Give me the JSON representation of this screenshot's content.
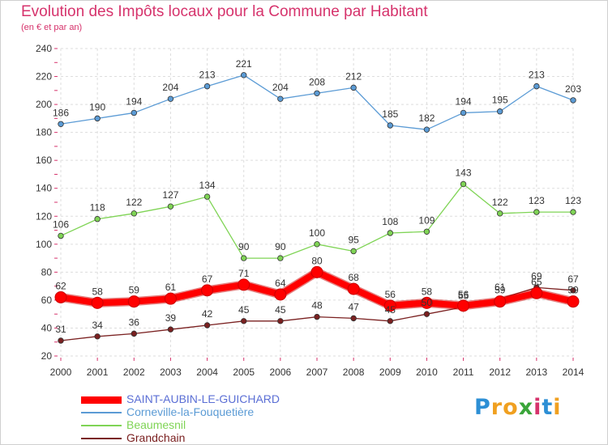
{
  "header": {
    "title": "Evolution des Impôts locaux pour la Commune par Habitant",
    "subtitle": "(en € et par an)"
  },
  "logo": {
    "letters": [
      "P",
      "r",
      "o",
      "x",
      "i",
      "t",
      "i"
    ],
    "colors": [
      "#2d8fd5",
      "#f0a020",
      "#f0a020",
      "#3aa53a",
      "#d6336c",
      "#2d8fd5",
      "#f0a020"
    ]
  },
  "chart_data": {
    "type": "line",
    "x": [
      "2000",
      "2001",
      "2002",
      "2003",
      "2004",
      "2005",
      "2006",
      "2007",
      "2008",
      "2009",
      "2010",
      "2011",
      "2012",
      "2013",
      "2014"
    ],
    "ylim": [
      20,
      240
    ],
    "yticks": [
      20,
      40,
      60,
      80,
      100,
      120,
      140,
      160,
      180,
      200,
      220,
      240
    ],
    "grid": true,
    "legend_position": "bottom-left",
    "series": [
      {
        "name": "SAINT-AUBIN-LE-GUICHARD",
        "color": "#ff0000",
        "values": [
          62,
          58,
          59,
          61,
          67,
          71,
          64,
          80,
          68,
          56,
          58,
          56,
          59,
          65,
          59
        ],
        "labels": [
          "62",
          "58",
          "59",
          "61",
          "67",
          "71",
          "64",
          "80",
          "68",
          "56",
          "58",
          "56",
          "59",
          "65",
          "59"
        ]
      },
      {
        "name": "Corneville-la-Fouquetière",
        "color": "#5b9bd5",
        "values": [
          186,
          190,
          194,
          204,
          213,
          221,
          204,
          208,
          212,
          185,
          182,
          194,
          195,
          213,
          203
        ],
        "labels": [
          "186",
          "190",
          "194",
          "204",
          "213",
          "221",
          "204",
          "208",
          "212",
          "185",
          "182",
          "194",
          "195",
          "213",
          "203"
        ]
      },
      {
        "name": "Beaumesnil",
        "color": "#7fd455",
        "values": [
          106,
          118,
          122,
          127,
          134,
          90,
          90,
          100,
          95,
          108,
          109,
          143,
          122,
          123,
          123
        ],
        "labels": [
          "106",
          "118",
          "122",
          "127",
          "134",
          "90",
          "90",
          "100",
          "95",
          "108",
          "109",
          "143",
          "122",
          "123",
          "123"
        ]
      },
      {
        "name": "Grandchain",
        "color": "#7a2020",
        "values": [
          31,
          34,
          36,
          39,
          42,
          45,
          45,
          48,
          47,
          45,
          50,
          55,
          61,
          69,
          67
        ],
        "labels": [
          "31",
          "34",
          "36",
          "39",
          "42",
          "45",
          "45",
          "48",
          "47",
          "45",
          "50",
          "55",
          "61",
          "69",
          "67"
        ]
      }
    ]
  }
}
